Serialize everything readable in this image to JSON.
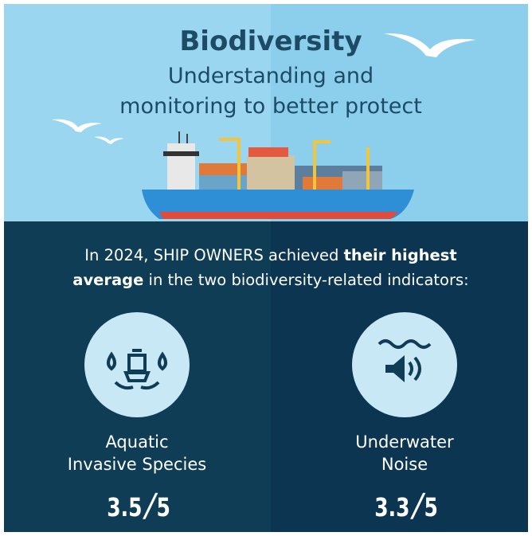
{
  "header": {
    "title": "Biodiversity",
    "subtitle_lines": [
      "Understanding and",
      "monitoring to better protect"
    ]
  },
  "intro": {
    "segments": [
      {
        "text": "In 2024, SHIP OWNERS achieved ",
        "bold": false
      },
      {
        "text": "their highest average",
        "bold": true
      },
      {
        "text": " in the two biodiversity-related indicators:",
        "bold": false
      }
    ]
  },
  "score_separator": "/",
  "indicators": [
    {
      "label_lines": [
        "Aquatic",
        "Invasive Species"
      ],
      "score": "3.5",
      "out_of": "5"
    },
    {
      "label_lines": [
        "Underwater",
        "Noise"
      ],
      "score": "3.3",
      "out_of": "5"
    }
  ]
}
